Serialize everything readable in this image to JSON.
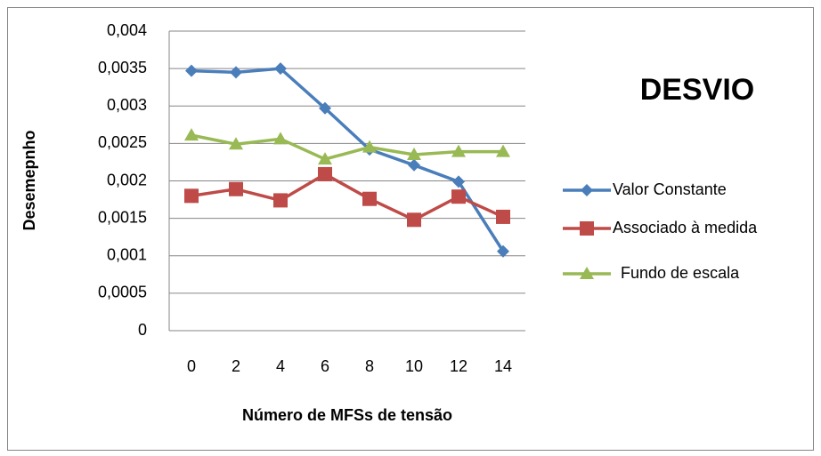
{
  "chart_data": {
    "type": "line",
    "title": "DESVIO",
    "y_label": "Desemepnho",
    "x_label": "Número de MFSs de tensão",
    "categories": [
      "0",
      "2",
      "4",
      "6",
      "8",
      "10",
      "12",
      "14"
    ],
    "series": [
      {
        "name": "Valor Constante",
        "color": "#4a7ebb",
        "values": [
          0.00347,
          0.00345,
          0.0035,
          0.00297,
          0.00242,
          0.00221,
          0.00199,
          0.00106
        ]
      },
      {
        "name": "Associado à medida",
        "color": "#be4b48",
        "values": [
          0.0018,
          0.00189,
          0.00174,
          0.00209,
          0.00176,
          0.00148,
          0.00179,
          0.00152
        ]
      },
      {
        "name": "Fundo de escala",
        "color": "#98b954",
        "values": [
          0.00261,
          0.00249,
          0.00256,
          0.00229,
          0.00245,
          0.00235,
          0.00239,
          0.00239
        ]
      }
    ],
    "ylim": [
      0,
      0.004
    ],
    "yticks": [
      0,
      {
        "value": 0.0005,
        "label": "0,0005"
      },
      {
        "value": 0.001,
        "label": "0,001"
      },
      {
        "value": 0.0015,
        "label": "0,0015"
      },
      {
        "value": 0.002,
        "label": "0,002"
      },
      {
        "value": 0.0025,
        "label": "0,0025"
      },
      {
        "value": 0.003,
        "label": "0,003"
      },
      {
        "value": 0.0035,
        "label": "0,0035"
      },
      {
        "value": 0.004,
        "label": "0,004"
      }
    ],
    "grid": true,
    "legend": "right"
  }
}
